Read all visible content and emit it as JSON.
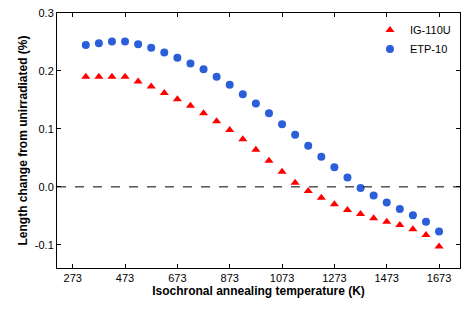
{
  "chart_data": {
    "type": "scatter",
    "x_label": "Isochronal annealing temperature (K)",
    "y_label": "Length change from unirradiated (%)",
    "x": [
      323,
      373,
      423,
      473,
      523,
      573,
      623,
      673,
      723,
      773,
      823,
      873,
      923,
      973,
      1023,
      1073,
      1123,
      1173,
      1223,
      1273,
      1323,
      1373,
      1423,
      1473,
      1523,
      1573,
      1623,
      1673
    ],
    "series": [
      {
        "name": "IG-110U",
        "color": "#ff0000",
        "marker": "triangle-up",
        "values": [
          0.19,
          0.19,
          0.19,
          0.19,
          0.182,
          0.173,
          0.162,
          0.151,
          0.14,
          0.127,
          0.113,
          0.098,
          0.082,
          0.064,
          0.045,
          0.026,
          0.007,
          -0.007,
          -0.019,
          -0.03,
          -0.04,
          -0.047,
          -0.054,
          -0.06,
          -0.066,
          -0.073,
          -0.083,
          -0.103
        ]
      },
      {
        "name": "ETP-10",
        "color": "#2b5fd9",
        "marker": "circle",
        "values": [
          0.245,
          0.248,
          0.251,
          0.251,
          0.246,
          0.24,
          0.232,
          0.223,
          0.213,
          0.203,
          0.19,
          0.176,
          0.16,
          0.144,
          0.127,
          0.108,
          0.09,
          0.071,
          0.052,
          0.034,
          0.016,
          -0.002,
          -0.015,
          -0.027,
          -0.038,
          -0.049,
          -0.06,
          -0.077
        ]
      }
    ],
    "xlim": [
      213,
      1753
    ],
    "xticks": [
      273,
      473,
      673,
      873,
      1073,
      1273,
      1473,
      1673
    ],
    "ylim": [
      -0.14,
      0.3
    ],
    "yticks": [
      -0.1,
      {
        "value": 0,
        "label": "0.0"
      },
      0.1,
      0.2,
      0.3
    ],
    "hline": {
      "y": 0,
      "line_style": "dash"
    },
    "legend": "top right",
    "grid": false
  }
}
